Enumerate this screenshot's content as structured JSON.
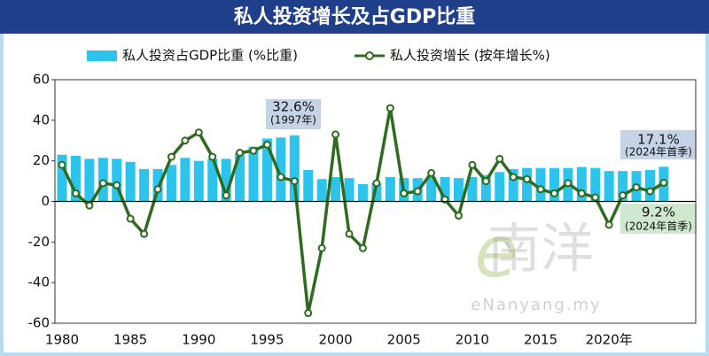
{
  "chart_data": {
    "type": "combo",
    "title": "私人投资增长及占GDP比重",
    "categories": [
      "1980",
      null,
      null,
      null,
      null,
      "1985",
      null,
      null,
      null,
      null,
      "1990",
      null,
      null,
      null,
      null,
      "1995",
      null,
      null,
      null,
      null,
      "2000",
      null,
      null,
      null,
      null,
      "2005",
      null,
      null,
      null,
      null,
      "2010",
      null,
      null,
      null,
      null,
      "2015",
      null,
      null,
      null,
      null,
      "2020年",
      null,
      null,
      null,
      null
    ],
    "series": [
      {
        "name": "私人投资占GDP比重 (%比重)",
        "type": "bar",
        "color": "#2cc3ec",
        "values": [
          23,
          22.5,
          21,
          21.5,
          21,
          19.5,
          16,
          16,
          18,
          21.5,
          20,
          21,
          21,
          24,
          27,
          31,
          31.5,
          32.6,
          15.5,
          11,
          12,
          11.5,
          8.5,
          9,
          12,
          11.5,
          11.5,
          12,
          12,
          11.5,
          12,
          13,
          14.5,
          16,
          16.5,
          16.5,
          16.5,
          16.5,
          17,
          16.5,
          15,
          15,
          15,
          15.5,
          17.1
        ],
        "value_labels": [
          null,
          null,
          null,
          null,
          null,
          null,
          null,
          null,
          null,
          null,
          null,
          null,
          null,
          null,
          null,
          null,
          null,
          "32.6%",
          null,
          null,
          null,
          null,
          null,
          null,
          null,
          null,
          null,
          null,
          null,
          null,
          null,
          null,
          null,
          null,
          null,
          null,
          null,
          null,
          null,
          null,
          null,
          null,
          null,
          null,
          "17.1%"
        ]
      },
      {
        "name": "私人投资增长 (按年增长%)",
        "type": "line",
        "color": "#2e6b1f",
        "values": [
          18,
          4,
          -2,
          9,
          8,
          -8.5,
          -16,
          6,
          22,
          30,
          34,
          22,
          3,
          24,
          25,
          28,
          12,
          10,
          -55,
          -23,
          33,
          -16,
          -23,
          9,
          46,
          4,
          5,
          14,
          1,
          -7,
          18,
          10,
          21,
          12,
          11,
          6,
          4,
          9,
          4,
          2,
          -11.5,
          3,
          7,
          5,
          9.2
        ],
        "value_labels": [
          null,
          null,
          null,
          null,
          null,
          null,
          null,
          null,
          null,
          null,
          null,
          null,
          null,
          null,
          null,
          null,
          null,
          null,
          null,
          null,
          null,
          null,
          null,
          null,
          null,
          null,
          null,
          null,
          null,
          null,
          null,
          null,
          null,
          null,
          null,
          null,
          null,
          null,
          null,
          null,
          null,
          null,
          null,
          null,
          "9.2%"
        ]
      }
    ],
    "annotations": [
      "(1997年)",
      "(2024年首季)",
      "(2024年首季)"
    ],
    "ylim": [
      -60,
      60
    ],
    "yticks": [
      -60,
      -40,
      -20,
      0,
      20,
      40,
      60
    ],
    "watermark": {
      "logo": "南洋",
      "site": "eNanyang.my"
    }
  }
}
